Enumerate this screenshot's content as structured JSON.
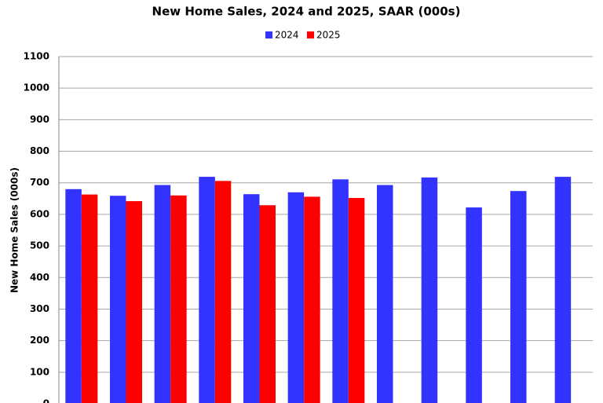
{
  "chart_data": {
    "type": "bar",
    "title": "New Home Sales,  2024 and 2025, SAAR (000s)",
    "y_label": "New Home Sales (000s)",
    "categories": [
      null,
      null,
      null,
      null,
      null,
      null,
      null,
      null,
      null,
      null,
      null,
      null
    ],
    "series": [
      {
        "name": "2024",
        "color": "#3333ff",
        "values": [
          680,
          659,
          693,
          719,
          664,
          670,
          711,
          693,
          717,
          622,
          674,
          719
        ]
      },
      {
        "name": "2025",
        "color": "#ff0000",
        "values": [
          663,
          642,
          660,
          706,
          629,
          656,
          652,
          null,
          null,
          null,
          null,
          null
        ]
      }
    ],
    "ylim": [
      0,
      1100
    ],
    "yticks": [
      0,
      100,
      200,
      300,
      400,
      500,
      600,
      700,
      800,
      900,
      1000,
      1100
    ],
    "grid": true,
    "legend": "top"
  }
}
